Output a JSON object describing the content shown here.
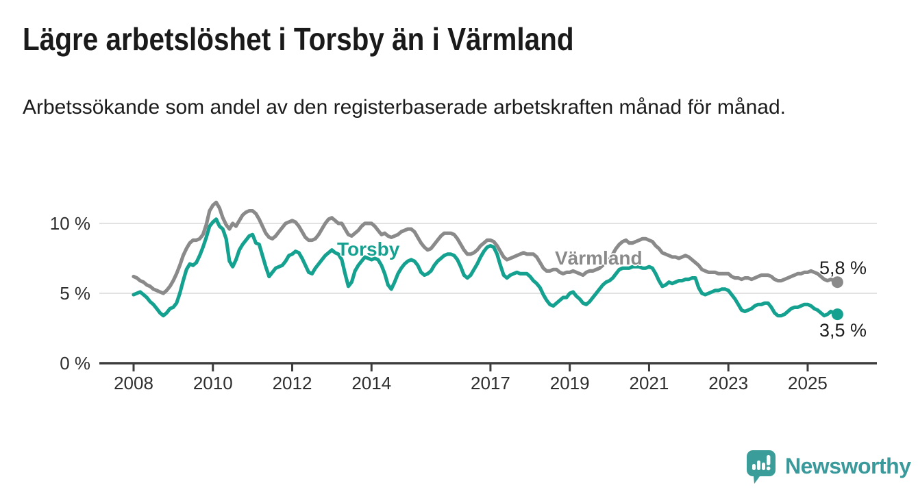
{
  "header": {
    "title": "Lägre arbetslöshet i Torsby än i Värmland",
    "subtitle": "Arbetssökande som andel av den registerbaserade arbetskraften månad för månad."
  },
  "chart": {
    "y_tick_labels": [
      "10 %",
      "5 %",
      "0 %"
    ],
    "x_tick_labels": [
      "2008",
      "2010",
      "2012",
      "2014",
      "2017",
      "2019",
      "2021",
      "2023",
      "2025"
    ],
    "series_labels": {
      "torsby": "Torsby",
      "varmland": "Värmland"
    },
    "end_labels": {
      "varmland": "5,8 %",
      "torsby": "3,5 %"
    },
    "colors": {
      "torsby": "#15a190",
      "varmland": "#8a8a8a",
      "grid": "#d9d9d9",
      "axis": "#3c3c3c",
      "tick_text": "#2e2e2e"
    }
  },
  "chart_data": {
    "type": "line",
    "title": "Lägre arbetslöshet i Torsby än i Värmland",
    "subtitle": "Arbetssökande som andel av den registerbaserade arbetskraften månad för månad.",
    "unit": "%",
    "frequency": "monthly",
    "x_start": "2008-01",
    "x_end": "2025-10",
    "ylim": [
      0,
      12
    ],
    "y_ticks": [
      10,
      5,
      0
    ],
    "x_ticks": [
      2008,
      2010,
      2012,
      2014,
      2017,
      2019,
      2021,
      2023,
      2025
    ],
    "grid": "horizontal-only",
    "legend_position": "inline-labels",
    "series": [
      {
        "name": "Värmland",
        "color": "#8a8a8a",
        "end_value": 5.8,
        "end_value_label": "5,8 %",
        "values": [
          6.2,
          6.1,
          5.9,
          5.8,
          5.6,
          5.5,
          5.3,
          5.2,
          5.1,
          5.0,
          5.2,
          5.5,
          5.9,
          6.4,
          7.0,
          7.7,
          8.2,
          8.6,
          8.8,
          8.8,
          8.9,
          9.2,
          9.9,
          10.9,
          11.3,
          11.5,
          11.1,
          10.4,
          9.9,
          9.6,
          10.0,
          9.8,
          10.2,
          10.6,
          10.8,
          10.9,
          10.9,
          10.7,
          10.3,
          9.8,
          9.3,
          9.0,
          8.9,
          9.1,
          9.4,
          9.7,
          10.0,
          10.1,
          10.2,
          10.1,
          9.8,
          9.4,
          9.0,
          8.8,
          8.8,
          8.9,
          9.2,
          9.6,
          10.0,
          10.3,
          10.4,
          10.2,
          10.0,
          10.0,
          9.6,
          9.2,
          9.1,
          9.3,
          9.5,
          9.8,
          10.0,
          10.0,
          10.0,
          9.8,
          9.5,
          9.2,
          9.3,
          9.1,
          9.0,
          9.1,
          9.2,
          9.4,
          9.5,
          9.6,
          9.6,
          9.4,
          9.0,
          8.6,
          8.3,
          8.1,
          8.2,
          8.5,
          8.8,
          9.1,
          9.3,
          9.3,
          9.3,
          9.2,
          8.9,
          8.5,
          8.1,
          7.8,
          7.8,
          7.9,
          8.1,
          8.4,
          8.6,
          8.8,
          8.8,
          8.7,
          8.4,
          8.0,
          7.6,
          7.4,
          7.5,
          7.6,
          7.7,
          7.8,
          7.9,
          7.8,
          7.8,
          7.8,
          7.6,
          7.2,
          6.8,
          6.6,
          6.6,
          6.7,
          6.7,
          6.5,
          6.4,
          6.5,
          6.5,
          6.6,
          6.5,
          6.4,
          6.3,
          6.5,
          6.6,
          6.6,
          6.7,
          6.8,
          7.0,
          7.3,
          7.5,
          7.8,
          8.2,
          8.5,
          8.7,
          8.8,
          8.6,
          8.6,
          8.7,
          8.8,
          8.9,
          8.9,
          8.8,
          8.7,
          8.4,
          8.2,
          7.9,
          7.8,
          7.7,
          7.6,
          7.6,
          7.5,
          7.6,
          7.7,
          7.6,
          7.4,
          7.2,
          7.0,
          6.7,
          6.6,
          6.5,
          6.5,
          6.5,
          6.4,
          6.4,
          6.4,
          6.4,
          6.2,
          6.1,
          6.1,
          6.0,
          6.1,
          6.1,
          6.0,
          6.1,
          6.2,
          6.3,
          6.3,
          6.3,
          6.2,
          6.0,
          5.9,
          5.9,
          6.0,
          6.1,
          6.2,
          6.3,
          6.4,
          6.4,
          6.5,
          6.5,
          6.6,
          6.5,
          6.4,
          6.2,
          6.0,
          5.9,
          6.0,
          5.9,
          5.8
        ]
      },
      {
        "name": "Torsby",
        "color": "#15a190",
        "end_value": 3.5,
        "end_value_label": "3,5 %",
        "values": [
          4.9,
          5.0,
          5.1,
          4.9,
          4.7,
          4.4,
          4.2,
          3.9,
          3.6,
          3.4,
          3.6,
          3.9,
          4.0,
          4.3,
          5.0,
          5.9,
          6.7,
          7.1,
          7.0,
          7.2,
          7.7,
          8.3,
          9.0,
          9.8,
          10.1,
          10.3,
          9.8,
          9.6,
          8.9,
          7.3,
          6.9,
          7.4,
          8.1,
          8.5,
          8.8,
          9.1,
          9.2,
          8.6,
          8.5,
          7.7,
          6.9,
          6.2,
          6.5,
          6.8,
          6.9,
          7.0,
          7.3,
          7.7,
          7.8,
          8.0,
          7.9,
          7.5,
          7.0,
          6.5,
          6.4,
          6.8,
          7.1,
          7.4,
          7.7,
          7.9,
          8.1,
          7.9,
          7.8,
          7.4,
          6.4,
          5.5,
          5.8,
          6.6,
          7.0,
          7.3,
          7.6,
          7.5,
          7.4,
          7.5,
          7.4,
          7.0,
          6.4,
          5.6,
          5.3,
          5.8,
          6.4,
          6.8,
          7.1,
          7.3,
          7.4,
          7.3,
          7.0,
          6.5,
          6.3,
          6.4,
          6.6,
          7.0,
          7.3,
          7.5,
          7.7,
          7.8,
          7.8,
          7.7,
          7.4,
          6.9,
          6.3,
          6.1,
          6.3,
          6.7,
          7.1,
          7.6,
          8.0,
          8.3,
          8.4,
          8.3,
          7.8,
          7.0,
          6.3,
          6.1,
          6.3,
          6.4,
          6.5,
          6.4,
          6.4,
          6.4,
          6.2,
          5.9,
          5.7,
          5.4,
          4.9,
          4.5,
          4.2,
          4.1,
          4.3,
          4.5,
          4.7,
          4.7,
          5.0,
          5.1,
          4.8,
          4.6,
          4.3,
          4.2,
          4.4,
          4.7,
          5.0,
          5.3,
          5.6,
          5.8,
          5.9,
          6.1,
          6.4,
          6.7,
          6.8,
          6.8,
          6.8,
          6.9,
          6.9,
          6.9,
          6.8,
          6.8,
          6.9,
          6.8,
          6.4,
          5.9,
          5.5,
          5.6,
          5.8,
          5.7,
          5.8,
          5.9,
          5.9,
          6.0,
          6.0,
          6.1,
          6.1,
          5.4,
          5.0,
          4.9,
          5.0,
          5.1,
          5.2,
          5.2,
          5.3,
          5.3,
          5.2,
          4.9,
          4.6,
          4.2,
          3.8,
          3.7,
          3.8,
          3.9,
          4.1,
          4.2,
          4.2,
          4.3,
          4.3,
          4.0,
          3.6,
          3.4,
          3.4,
          3.5,
          3.7,
          3.9,
          4.0,
          4.0,
          4.1,
          4.2,
          4.2,
          4.1,
          3.9,
          3.8,
          3.6,
          3.4,
          3.5,
          3.7,
          3.6,
          3.5
        ]
      }
    ]
  },
  "logo": {
    "brand": "Newsworthy",
    "color": "#3a9a9b",
    "icon": "speech-bubble-bar-chart"
  }
}
